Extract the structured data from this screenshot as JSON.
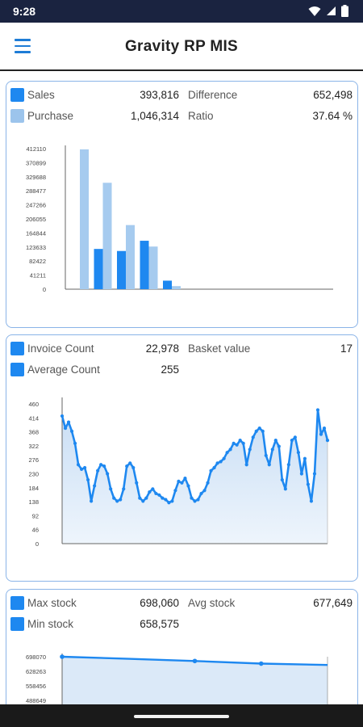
{
  "status_bar": {
    "time": "9:28"
  },
  "app_bar": {
    "title": "Gravity RP MIS"
  },
  "sales_card": {
    "rows": [
      {
        "label1": "Sales",
        "value1": "393,816",
        "label2": "Difference",
        "value2": "652,498"
      },
      {
        "label1": "Purchase",
        "value1": "1,046,314",
        "label2": "Ratio",
        "value2": "37.64 %"
      }
    ]
  },
  "invoice_card": {
    "rows": [
      {
        "label1": "Invoice Count",
        "value1": "22,978",
        "label2": "Basket value",
        "value2": "17"
      },
      {
        "label1": "Average Count",
        "value1": "255",
        "label2": "",
        "value2": ""
      }
    ]
  },
  "stock_card": {
    "rows": [
      {
        "label1": "Max stock",
        "value1": "698,060",
        "label2": "Avg stock",
        "value2": "677,649"
      },
      {
        "label1": "Min stock",
        "value1": "658,575",
        "label2": "",
        "value2": ""
      }
    ]
  },
  "chart_data": [
    {
      "type": "bar",
      "title": "",
      "y_ticks": [
        "412110",
        "370899",
        "329688",
        "288477",
        "247266",
        "206055",
        "164844",
        "123633",
        "82422",
        "41211",
        "0"
      ],
      "ylim": [
        0,
        412110
      ],
      "series": [
        {
          "name": "Sales",
          "color": "#1e88f0",
          "values": [
            0,
            118000,
            112000,
            142000,
            25000,
            0
          ]
        },
        {
          "name": "Purchase",
          "color": "#a6cbef",
          "values": [
            410000,
            312000,
            188000,
            125000,
            9000,
            0
          ]
        }
      ]
    },
    {
      "type": "area",
      "title": "",
      "y_ticks": [
        "460",
        "414",
        "368",
        "322",
        "276",
        "230",
        "184",
        "138",
        "92",
        "46",
        "0"
      ],
      "ylim": [
        0,
        460
      ],
      "color": "#1e88f0",
      "values": [
        420,
        380,
        400,
        370,
        330,
        260,
        245,
        250,
        210,
        140,
        190,
        240,
        260,
        255,
        230,
        180,
        150,
        140,
        145,
        180,
        255,
        265,
        250,
        200,
        150,
        140,
        150,
        170,
        180,
        165,
        160,
        150,
        145,
        135,
        140,
        175,
        205,
        200,
        215,
        190,
        150,
        140,
        145,
        165,
        175,
        200,
        240,
        250,
        265,
        270,
        280,
        300,
        310,
        330,
        325,
        340,
        330,
        260,
        310,
        350,
        370,
        380,
        370,
        290,
        260,
        310,
        340,
        320,
        210,
        180,
        260,
        340,
        350,
        300,
        230,
        280,
        195,
        140,
        230,
        440,
        360,
        380,
        340
      ],
      "x_start": 0
    },
    {
      "type": "area",
      "title": "",
      "y_ticks": [
        "698070",
        "628263",
        "558456",
        "488649"
      ],
      "ylim": [
        488649,
        698070
      ],
      "color": "#1e88f0",
      "values": [
        698060,
        688000,
        677649,
        665000,
        658575
      ],
      "marker_indices": [
        0,
        2,
        3
      ]
    }
  ]
}
